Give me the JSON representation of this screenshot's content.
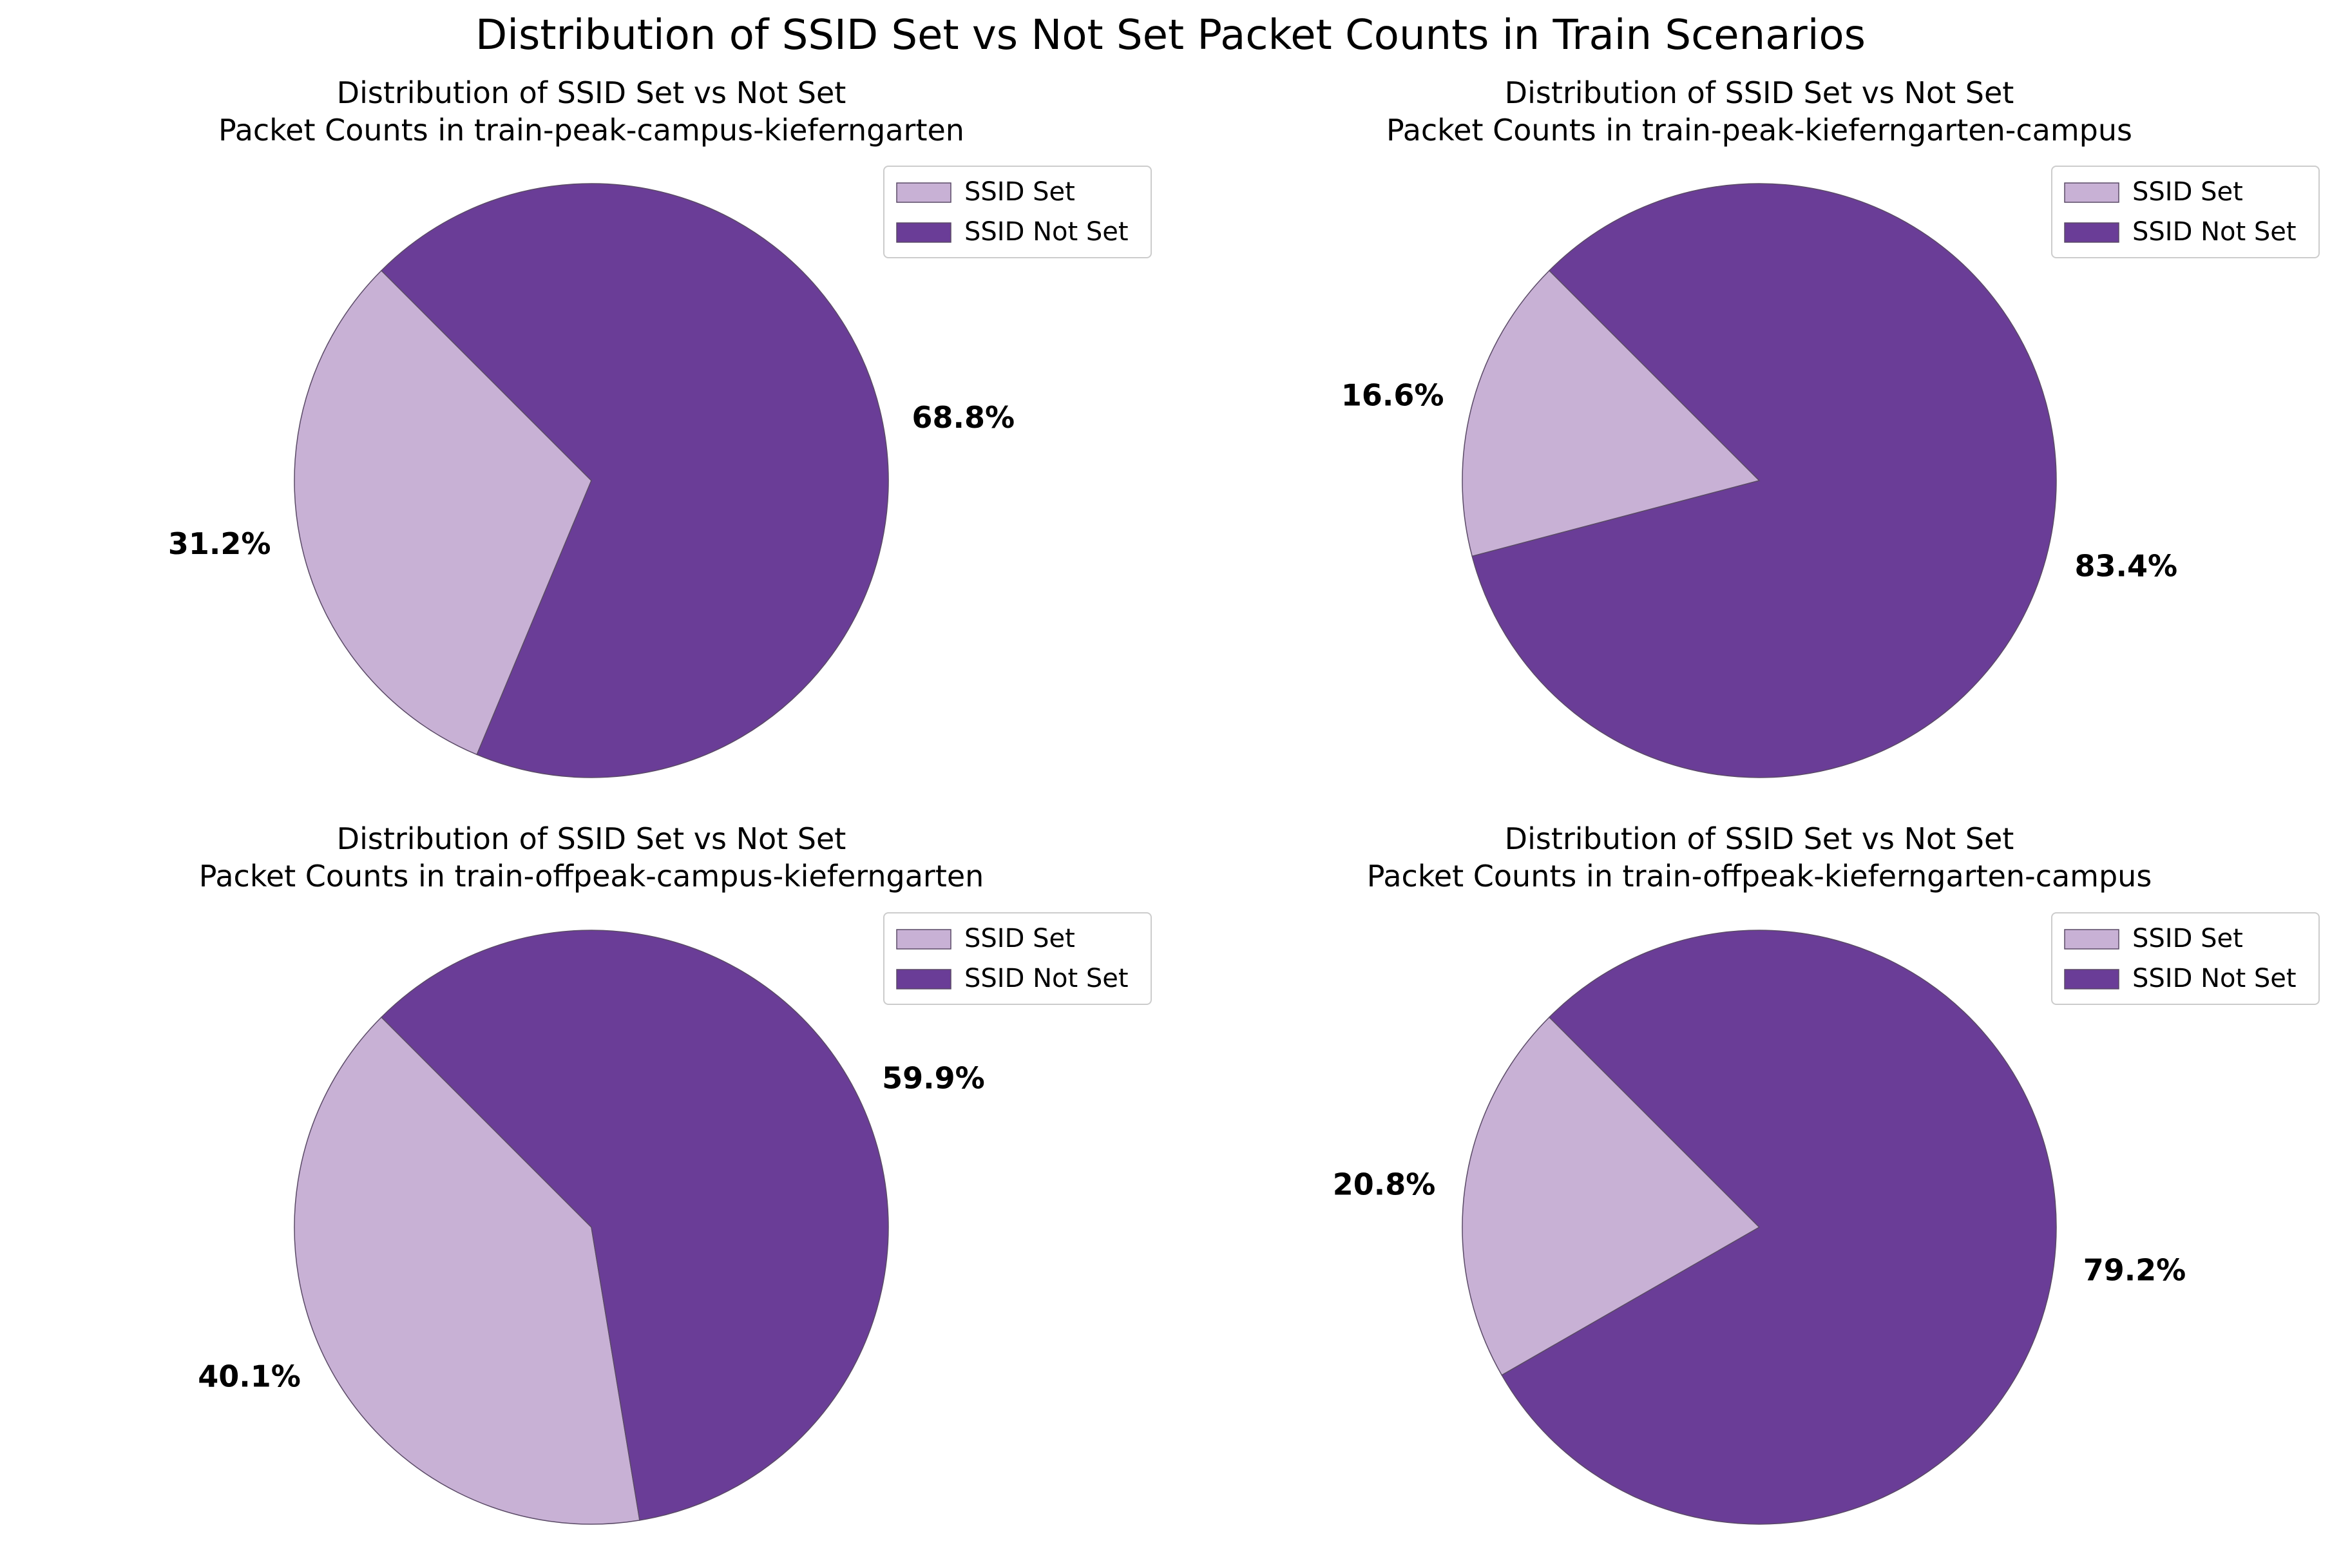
{
  "suptitle": "Distribution of SSID Set vs Not Set Packet Counts in Train Scenarios",
  "colors": {
    "set": "#c8b1d5",
    "not_set": "#6a3d97",
    "edge": "#5a4a66"
  },
  "chart_data": [
    {
      "type": "pie",
      "title": [
        "Distribution of SSID Set vs Not Set",
        "Packet Counts in train-peak-campus-kieferngarten"
      ],
      "labels": [
        "SSID Set",
        "SSID Not Set"
      ],
      "values": [
        31.2,
        68.8
      ],
      "value_labels": [
        "31.2%",
        "68.8%"
      ],
      "start_angle": 135,
      "legend": "top-right"
    },
    {
      "type": "pie",
      "title": [
        "Distribution of SSID Set vs Not Set",
        "Packet Counts in train-peak-kieferngarten-campus"
      ],
      "labels": [
        "SSID Set",
        "SSID Not Set"
      ],
      "values": [
        16.6,
        83.4
      ],
      "value_labels": [
        "16.6%",
        "83.4%"
      ],
      "start_angle": 135,
      "legend": "top-right"
    },
    {
      "type": "pie",
      "title": [
        "Distribution of SSID Set vs Not Set",
        "Packet Counts in train-offpeak-campus-kieferngarten"
      ],
      "labels": [
        "SSID Set",
        "SSID Not Set"
      ],
      "values": [
        40.1,
        59.9
      ],
      "value_labels": [
        "40.1%",
        "59.9%"
      ],
      "start_angle": 135,
      "legend": "top-right"
    },
    {
      "type": "pie",
      "title": [
        "Distribution of SSID Set vs Not Set",
        "Packet Counts in train-offpeak-kieferngarten-campus"
      ],
      "labels": [
        "SSID Set",
        "SSID Not Set"
      ],
      "values": [
        20.8,
        79.2
      ],
      "value_labels": [
        "20.8%",
        "79.2%"
      ],
      "start_angle": 135,
      "legend": "top-right"
    }
  ]
}
